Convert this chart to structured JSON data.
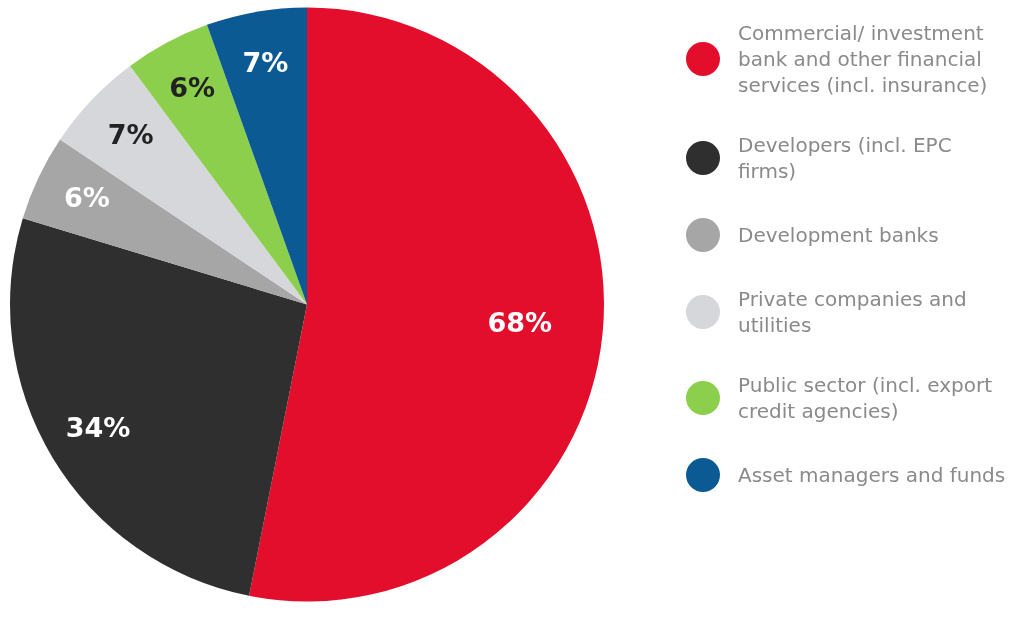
{
  "chart_data": {
    "type": "pie",
    "categories": [
      "Commercial/ investment bank and other financial services (incl. insurance)",
      "Developers (incl. EPC firms)",
      "Development banks",
      "Private companies and utilities",
      "Public sector (incl. export credit agencies)",
      "Asset managers and funds"
    ],
    "values": [
      68,
      34,
      6,
      7,
      6,
      7
    ],
    "value_labels": [
      "68%",
      "34%",
      "6%",
      "7%",
      "6%",
      "7%"
    ],
    "colors": [
      "#e20e2c",
      "#2f2f2f",
      "#a6a6a6",
      "#d6d7da",
      "#8ccf4d",
      "#0c5a93"
    ],
    "legend": "right"
  }
}
